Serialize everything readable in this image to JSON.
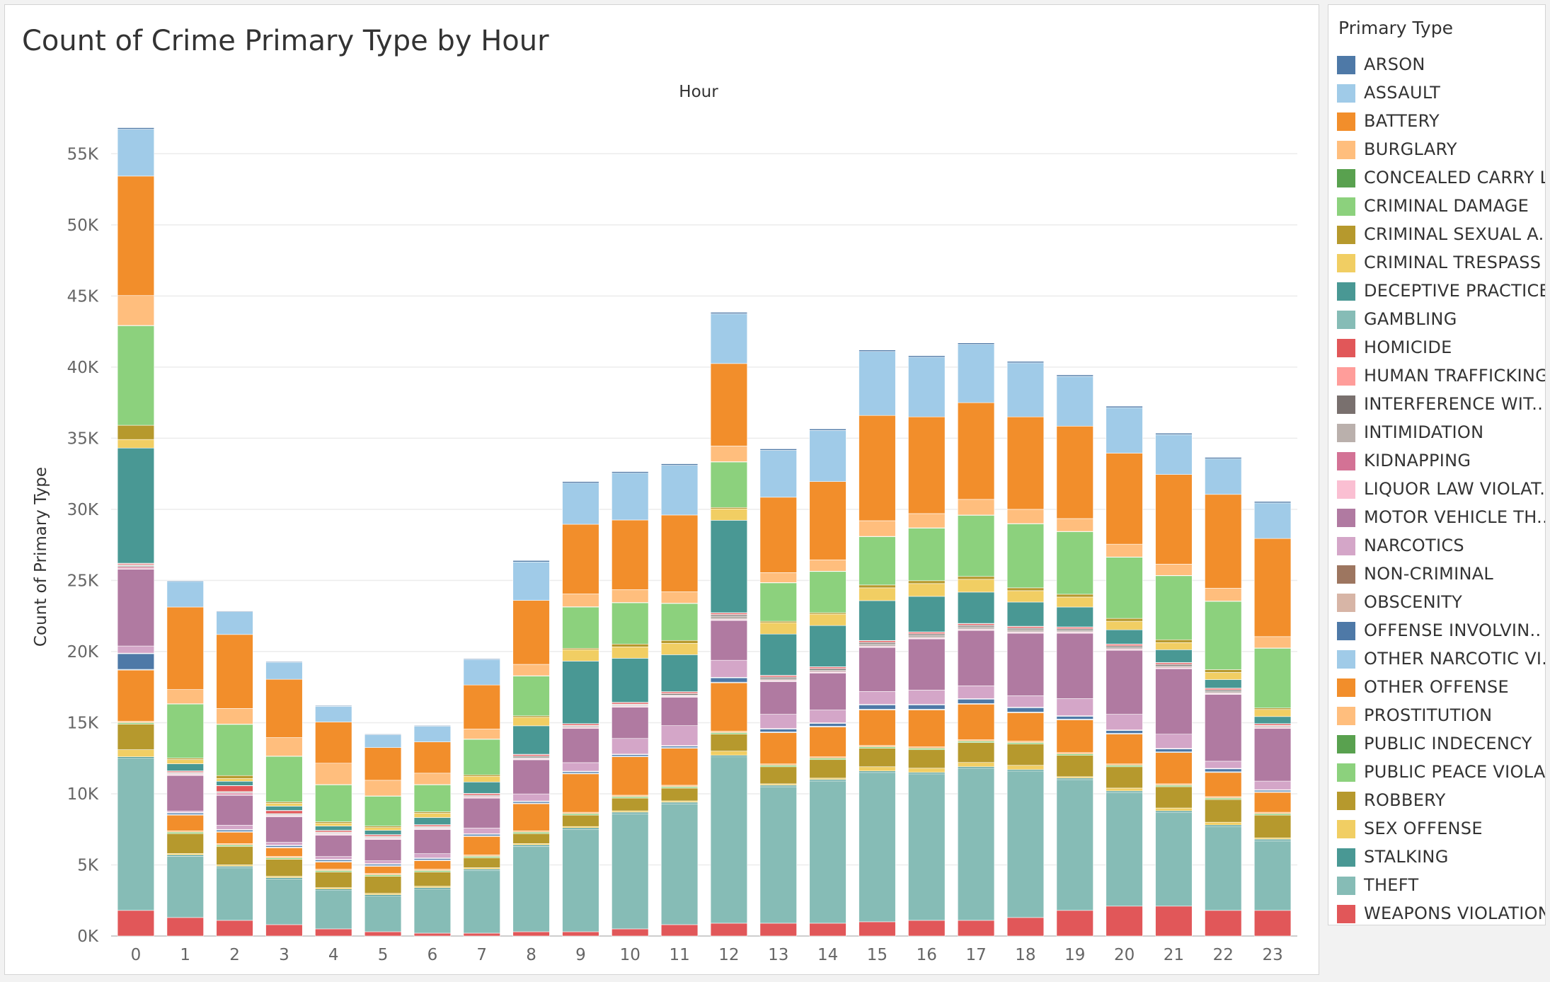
{
  "chart_data": {
    "type": "bar",
    "stacked": true,
    "title": "Count of Crime Primary Type by Hour",
    "column_header": "Hour",
    "ylabel": "Count of Primary Type",
    "ylim": [
      0,
      58000
    ],
    "y_ticks": [
      {
        "value": 0,
        "label": "0K"
      },
      {
        "value": 5000,
        "label": "5K"
      },
      {
        "value": 10000,
        "label": "10K"
      },
      {
        "value": 15000,
        "label": "15K"
      },
      {
        "value": 20000,
        "label": "20K"
      },
      {
        "value": 25000,
        "label": "25K"
      },
      {
        "value": 30000,
        "label": "30K"
      },
      {
        "value": 35000,
        "label": "35K"
      },
      {
        "value": 40000,
        "label": "40K"
      },
      {
        "value": 45000,
        "label": "45K"
      },
      {
        "value": 50000,
        "label": "50K"
      },
      {
        "value": 55000,
        "label": "55K"
      }
    ],
    "grid": true,
    "legend_position": "right",
    "categories": [
      "0",
      "1",
      "2",
      "3",
      "4",
      "5",
      "6",
      "7",
      "8",
      "9",
      "10",
      "11",
      "12",
      "13",
      "14",
      "15",
      "16",
      "17",
      "18",
      "19",
      "20",
      "21",
      "22",
      "23"
    ],
    "series": [
      {
        "name": "WEAPONS VIOLATION",
        "color": "#e15759",
        "values": [
          1800,
          1300,
          1100,
          800,
          500,
          300,
          200,
          200,
          300,
          300,
          500,
          800,
          900,
          900,
          900,
          1000,
          1100,
          1100,
          1300,
          1800,
          2100,
          2100,
          1800,
          1800
        ]
      },
      {
        "name": "THEFT",
        "color": "#86bcb6",
        "values": [
          10700,
          4300,
          3700,
          3200,
          2700,
          2500,
          3100,
          4400,
          6000,
          7200,
          8100,
          8500,
          11700,
          9600,
          10000,
          10500,
          10300,
          10700,
          10300,
          9200,
          8000,
          6600,
          5900,
          4900
        ]
      },
      {
        "name": "STALKING",
        "color": "#499894",
        "values": [
          100,
          100,
          100,
          100,
          100,
          100,
          100,
          100,
          100,
          100,
          100,
          100,
          100,
          100,
          100,
          100,
          100,
          100,
          100,
          100,
          100,
          100,
          100,
          100
        ]
      },
      {
        "name": "SEX OFFENSE",
        "color": "#f1ce63",
        "values": [
          500,
          100,
          100,
          100,
          100,
          100,
          100,
          100,
          100,
          100,
          100,
          100,
          300,
          100,
          100,
          300,
          300,
          300,
          300,
          100,
          200,
          200,
          200,
          100
        ]
      },
      {
        "name": "ROBBERY",
        "color": "#b6992d",
        "values": [
          1800,
          1400,
          1300,
          1200,
          1100,
          1200,
          1000,
          700,
          700,
          800,
          900,
          900,
          1200,
          1200,
          1300,
          1300,
          1300,
          1400,
          1500,
          1500,
          1500,
          1500,
          1600,
          1600
        ]
      },
      {
        "name": "PUBLIC PEACE VIOLATION",
        "color": "#8cd17d",
        "values": [
          100,
          100,
          100,
          100,
          100,
          100,
          100,
          100,
          100,
          100,
          100,
          100,
          100,
          100,
          100,
          100,
          100,
          100,
          100,
          100,
          100,
          100,
          100,
          100
        ]
      },
      {
        "name": "PUBLIC INDECENCY",
        "color": "#59a14f",
        "values": [
          0,
          0,
          0,
          0,
          0,
          0,
          0,
          0,
          0,
          0,
          0,
          0,
          0,
          0,
          0,
          0,
          0,
          0,
          0,
          0,
          0,
          0,
          0,
          0
        ]
      },
      {
        "name": "PROSTITUTION",
        "color": "#ffbe7d",
        "values": [
          100,
          100,
          100,
          100,
          100,
          100,
          100,
          100,
          100,
          100,
          100,
          100,
          100,
          100,
          100,
          100,
          100,
          100,
          100,
          100,
          100,
          100,
          100,
          100
        ]
      },
      {
        "name": "OTHER OFFENSE",
        "color": "#f28e2b",
        "values": [
          3600,
          1100,
          800,
          600,
          500,
          500,
          600,
          1300,
          1900,
          2700,
          2700,
          2600,
          3400,
          2200,
          2100,
          2500,
          2600,
          2500,
          2000,
          2300,
          2100,
          2200,
          1700,
          1400
        ]
      },
      {
        "name": "OTHER NARCOTIC VIOLATION",
        "color": "#a0cbe8",
        "values": [
          50,
          50,
          50,
          50,
          50,
          50,
          50,
          50,
          50,
          50,
          50,
          50,
          50,
          50,
          50,
          50,
          50,
          50,
          50,
          50,
          50,
          50,
          50,
          50
        ]
      },
      {
        "name": "OFFENSE INVOLVING CHILDREN",
        "color": "#4e79a7",
        "values": [
          1100,
          100,
          100,
          100,
          100,
          100,
          100,
          100,
          100,
          100,
          100,
          100,
          300,
          200,
          200,
          300,
          300,
          300,
          300,
          200,
          200,
          200,
          200,
          100
        ]
      },
      {
        "name": "OBSCENITY",
        "color": "#d7b5a6",
        "values": [
          20,
          20,
          20,
          20,
          20,
          20,
          20,
          20,
          20,
          20,
          20,
          20,
          20,
          20,
          20,
          20,
          20,
          20,
          20,
          20,
          20,
          20,
          20,
          20
        ]
      },
      {
        "name": "NON-CRIMINAL",
        "color": "#9d7660",
        "values": [
          20,
          20,
          20,
          20,
          20,
          20,
          20,
          20,
          20,
          20,
          20,
          20,
          20,
          20,
          20,
          20,
          20,
          20,
          20,
          20,
          20,
          20,
          20,
          20
        ]
      },
      {
        "name": "NARCOTICS",
        "color": "#d4a6c8",
        "values": [
          500,
          100,
          300,
          200,
          200,
          200,
          300,
          400,
          500,
          600,
          1100,
          1400,
          1200,
          1000,
          900,
          900,
          1000,
          900,
          800,
          1200,
          1100,
          1000,
          500,
          600
        ]
      },
      {
        "name": "MOTOR VEHICLE THEFT",
        "color": "#b07aa1",
        "values": [
          5400,
          2500,
          2100,
          1800,
          1500,
          1500,
          1700,
          2100,
          2400,
          2400,
          2200,
          2000,
          2800,
          2300,
          2600,
          3100,
          3600,
          3900,
          4400,
          4600,
          4500,
          4600,
          4700,
          3700
        ]
      },
      {
        "name": "LIQUOR LAW VIOLATION",
        "color": "#fabfd2",
        "values": [
          50,
          50,
          50,
          50,
          50,
          50,
          50,
          50,
          50,
          50,
          50,
          50,
          50,
          50,
          50,
          50,
          50,
          50,
          50,
          50,
          50,
          50,
          50,
          50
        ]
      },
      {
        "name": "KIDNAPPING",
        "color": "#d37295",
        "values": [
          100,
          50,
          100,
          50,
          50,
          50,
          50,
          50,
          50,
          50,
          50,
          50,
          50,
          50,
          50,
          50,
          50,
          50,
          50,
          50,
          50,
          50,
          50,
          50
        ]
      },
      {
        "name": "INTIMIDATION",
        "color": "#bab0ac",
        "values": [
          100,
          50,
          50,
          50,
          50,
          50,
          50,
          50,
          50,
          50,
          50,
          50,
          200,
          100,
          100,
          150,
          150,
          150,
          150,
          100,
          100,
          100,
          100,
          50
        ]
      },
      {
        "name": "INTERFERENCE WITH PUBLIC OFFICER",
        "color": "#79706e",
        "values": [
          50,
          50,
          50,
          50,
          50,
          50,
          50,
          50,
          100,
          50,
          50,
          100,
          100,
          100,
          100,
          100,
          100,
          100,
          100,
          100,
          100,
          100,
          100,
          50
        ]
      },
      {
        "name": "HUMAN TRAFFICKING",
        "color": "#ff9d9a",
        "values": [
          20,
          20,
          20,
          20,
          20,
          20,
          20,
          20,
          20,
          20,
          20,
          20,
          20,
          20,
          20,
          20,
          20,
          20,
          20,
          20,
          20,
          20,
          20,
          20
        ]
      },
      {
        "name": "HOMICIDE",
        "color": "#e15759",
        "values": [
          80,
          80,
          400,
          200,
          100,
          100,
          100,
          100,
          100,
          100,
          100,
          100,
          100,
          100,
          100,
          100,
          100,
          100,
          100,
          100,
          100,
          100,
          100,
          100
        ]
      },
      {
        "name": "GAMBLING",
        "color": "#86bcb6",
        "values": [
          20,
          20,
          20,
          20,
          20,
          20,
          20,
          20,
          20,
          20,
          20,
          20,
          20,
          20,
          20,
          20,
          20,
          20,
          20,
          20,
          20,
          20,
          20,
          20
        ]
      },
      {
        "name": "DECEPTIVE PRACTICE",
        "color": "#499894",
        "values": [
          8100,
          500,
          300,
          300,
          300,
          300,
          500,
          800,
          2000,
          4400,
          3100,
          2600,
          6500,
          2900,
          2900,
          2800,
          2500,
          2200,
          1700,
          1400,
          1000,
          900,
          600,
          500
        ]
      },
      {
        "name": "CRIMINAL TRESPASS",
        "color": "#f1ce63",
        "values": [
          600,
          300,
          200,
          200,
          200,
          200,
          300,
          400,
          600,
          800,
          800,
          800,
          800,
          800,
          800,
          900,
          900,
          900,
          800,
          700,
          600,
          500,
          500,
          500
        ]
      },
      {
        "name": "CRIMINAL SEXUAL ASSAULT",
        "color": "#b6992d",
        "values": [
          1000,
          100,
          200,
          100,
          100,
          100,
          100,
          100,
          100,
          100,
          200,
          200,
          100,
          100,
          100,
          200,
          200,
          200,
          200,
          200,
          200,
          200,
          200,
          100
        ]
      },
      {
        "name": "CRIMINAL DAMAGE",
        "color": "#8cd17d",
        "values": [
          7000,
          3800,
          3600,
          3200,
          2600,
          2100,
          1900,
          2500,
          2800,
          2900,
          2900,
          2600,
          3200,
          2700,
          2900,
          3400,
          3700,
          4300,
          4500,
          4400,
          4300,
          4500,
          4800,
          4200
        ]
      },
      {
        "name": "CONCEALED CARRY LICENSE VIOLATION",
        "color": "#59a14f",
        "values": [
          20,
          20,
          20,
          20,
          20,
          20,
          20,
          20,
          20,
          20,
          20,
          20,
          20,
          20,
          20,
          20,
          20,
          20,
          20,
          20,
          20,
          20,
          20,
          20
        ]
      },
      {
        "name": "BURGLARY",
        "color": "#ffbe7d",
        "values": [
          2100,
          1000,
          1100,
          1300,
          1500,
          1100,
          800,
          700,
          800,
          900,
          900,
          800,
          1100,
          700,
          800,
          1100,
          1000,
          1100,
          1000,
          900,
          900,
          800,
          900,
          800
        ]
      },
      {
        "name": "BATTERY",
        "color": "#f28e2b",
        "values": [
          8400,
          5800,
          5200,
          4100,
          2900,
          2300,
          2200,
          3100,
          4500,
          4900,
          4900,
          5400,
          5800,
          5300,
          5500,
          7400,
          6800,
          6800,
          6500,
          6500,
          6400,
          6300,
          6600,
          6900
        ]
      },
      {
        "name": "ASSAULT",
        "color": "#a0cbe8",
        "values": [
          3300,
          1800,
          1600,
          1200,
          1100,
          900,
          1100,
          1800,
          2700,
          2900,
          3300,
          3500,
          3500,
          3300,
          3600,
          4500,
          4200,
          4100,
          3800,
          3500,
          3200,
          2800,
          2500,
          2500
        ]
      },
      {
        "name": "ARSON",
        "color": "#4e79a7",
        "values": [
          100,
          50,
          50,
          50,
          50,
          50,
          50,
          50,
          100,
          100,
          100,
          100,
          100,
          100,
          100,
          100,
          100,
          100,
          100,
          100,
          100,
          100,
          100,
          100
        ]
      }
    ]
  },
  "legend": {
    "title": "Primary Type",
    "items": [
      {
        "label": "ARSON",
        "color": "#4e79a7"
      },
      {
        "label": "ASSAULT",
        "color": "#a0cbe8"
      },
      {
        "label": "BATTERY",
        "color": "#f28e2b"
      },
      {
        "label": "BURGLARY",
        "color": "#ffbe7d"
      },
      {
        "label": "CONCEALED CARRY L..",
        "color": "#59a14f"
      },
      {
        "label": "CRIMINAL DAMAGE",
        "color": "#8cd17d"
      },
      {
        "label": "CRIMINAL SEXUAL A..",
        "color": "#b6992d"
      },
      {
        "label": "CRIMINAL TRESPASS",
        "color": "#f1ce63"
      },
      {
        "label": "DECEPTIVE PRACTICE",
        "color": "#499894"
      },
      {
        "label": "GAMBLING",
        "color": "#86bcb6"
      },
      {
        "label": "HOMICIDE",
        "color": "#e15759"
      },
      {
        "label": "HUMAN TRAFFICKING",
        "color": "#ff9d9a"
      },
      {
        "label": "INTERFERENCE WIT..",
        "color": "#79706e"
      },
      {
        "label": "INTIMIDATION",
        "color": "#bab0ac"
      },
      {
        "label": "KIDNAPPING",
        "color": "#d37295"
      },
      {
        "label": "LIQUOR LAW VIOLAT..",
        "color": "#fabfd2"
      },
      {
        "label": "MOTOR VEHICLE TH..",
        "color": "#b07aa1"
      },
      {
        "label": "NARCOTICS",
        "color": "#d4a6c8"
      },
      {
        "label": "NON-CRIMINAL",
        "color": "#9d7660"
      },
      {
        "label": "OBSCENITY",
        "color": "#d7b5a6"
      },
      {
        "label": "OFFENSE INVOLVIN..",
        "color": "#4e79a7"
      },
      {
        "label": "OTHER NARCOTIC VI..",
        "color": "#a0cbe8"
      },
      {
        "label": "OTHER OFFENSE",
        "color": "#f28e2b"
      },
      {
        "label": "PROSTITUTION",
        "color": "#ffbe7d"
      },
      {
        "label": "PUBLIC INDECENCY",
        "color": "#59a14f"
      },
      {
        "label": "PUBLIC PEACE VIOLA..",
        "color": "#8cd17d"
      },
      {
        "label": "ROBBERY",
        "color": "#b6992d"
      },
      {
        "label": "SEX OFFENSE",
        "color": "#f1ce63"
      },
      {
        "label": "STALKING",
        "color": "#499894"
      },
      {
        "label": "THEFT",
        "color": "#86bcb6"
      },
      {
        "label": "WEAPONS VIOLATION",
        "color": "#e15759"
      }
    ]
  }
}
